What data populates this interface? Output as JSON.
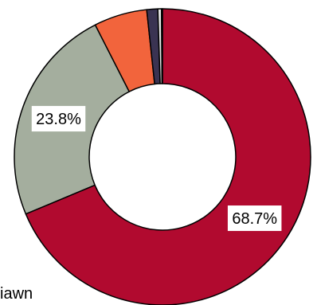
{
  "chart_data": {
    "type": "pie",
    "donut": true,
    "categories": [
      "",
      "",
      "",
      "",
      "",
      ""
    ],
    "values": [
      68.7,
      23.8,
      5.8,
      1.2,
      0.4,
      0.1
    ],
    "colors": [
      "#b10a2f",
      "#a4ae9e",
      "#f2643c",
      "#3a3352",
      "#e6e6e6",
      "#1a1a1a"
    ],
    "data_labels": [
      "68.7%",
      "23.8%",
      "",
      "",
      "",
      ""
    ],
    "legend": {
      "visible_text": "iawn",
      "placement": "bottom-left"
    }
  }
}
